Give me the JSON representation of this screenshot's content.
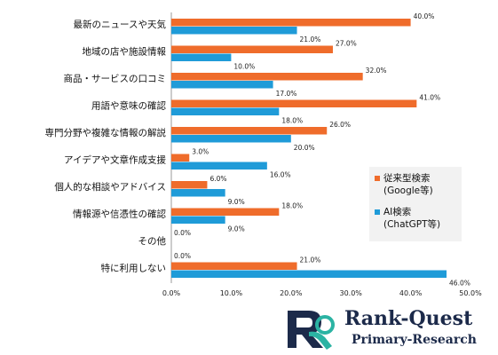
{
  "chart_data": {
    "type": "bar",
    "orientation": "horizontal",
    "categories": [
      "最新のニュースや天気",
      "地域の店や施設情報",
      "商品・サービスの口コミ",
      "用語や意味の確認",
      "専門分野や複雑な情報の解説",
      "アイデアや文章作成支援",
      "個人的な相談やアドバイス",
      "情報源や信憑性の確認",
      "その他",
      "特に利用しない"
    ],
    "series": [
      {
        "name": "従来型検索\n(Google等)",
        "color": "#ef6c2b",
        "values": [
          40.0,
          27.0,
          32.0,
          41.0,
          26.0,
          3.0,
          6.0,
          18.0,
          0.0,
          21.0
        ]
      },
      {
        "name": "AI検索\n(ChatGPT等)",
        "color": "#1f9bd8",
        "values": [
          21.0,
          10.0,
          17.0,
          18.0,
          20.0,
          16.0,
          9.0,
          9.0,
          0.0,
          46.0
        ]
      }
    ],
    "xlim": [
      0,
      50
    ],
    "xticks": [
      "0.0%",
      "10.0%",
      "20.0%",
      "30.0%",
      "40.0%",
      "50.0%"
    ],
    "value_suffix": "%",
    "grid": false,
    "legend_position": "right"
  },
  "logo": {
    "name": "Rank-Quest",
    "subtitle": "Primary-Research"
  }
}
